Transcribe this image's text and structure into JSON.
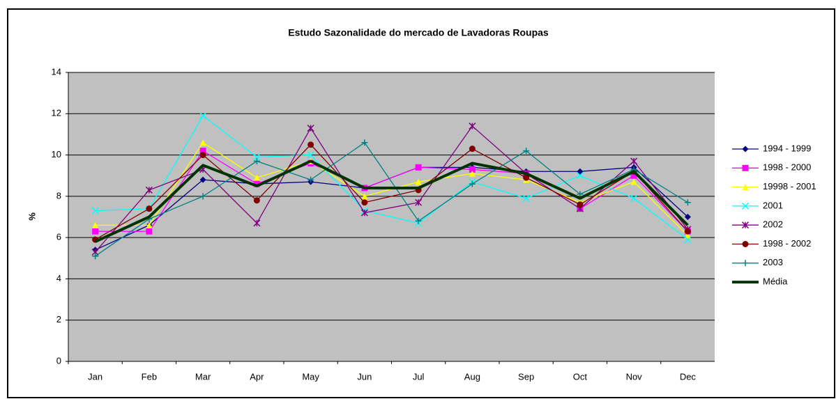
{
  "chart_data": {
    "type": "line",
    "title": "Estudo Sazonalidade do mercado de Lavadoras Roupas",
    "y_label": "%",
    "categories": [
      "Jan",
      "Feb",
      "Mar",
      "Apr",
      "May",
      "Jun",
      "Jul",
      "Aug",
      "Sep",
      "Oct",
      "Nov",
      "Dec"
    ],
    "ylim": [
      0,
      14
    ],
    "yticks": [
      0,
      2,
      4,
      6,
      8,
      10,
      12,
      14
    ],
    "grid": true,
    "legend": "right",
    "series": [
      {
        "name": "1994 - 1999",
        "color": "#000080",
        "marker": "diamond",
        "values": [
          5.4,
          6.6,
          8.8,
          8.6,
          8.7,
          8.4,
          9.4,
          9.4,
          9.2,
          9.2,
          9.4,
          7.0
        ]
      },
      {
        "name": "1998 - 2000",
        "color": "#ff00ff",
        "marker": "square",
        "values": [
          6.3,
          6.3,
          10.2,
          8.6,
          9.6,
          8.4,
          9.4,
          9.3,
          9.1,
          7.4,
          9.0,
          6.3
        ]
      },
      {
        "name": "19998 - 2001",
        "color": "#ffff00",
        "marker": "triangle",
        "values": [
          6.6,
          6.6,
          10.6,
          8.9,
          9.7,
          8.0,
          8.7,
          9.1,
          8.8,
          7.7,
          8.7,
          6.1
        ]
      },
      {
        "name": "2001",
        "color": "#00ffff",
        "marker": "x",
        "values": [
          7.3,
          7.4,
          11.9,
          9.9,
          10.0,
          7.3,
          6.7,
          8.7,
          7.9,
          9.0,
          7.9,
          5.9
        ]
      },
      {
        "name": "2002",
        "color": "#800080",
        "marker": "star",
        "values": [
          5.3,
          8.3,
          9.3,
          6.7,
          11.3,
          7.2,
          7.7,
          11.4,
          9.1,
          7.4,
          9.7,
          6.4
        ]
      },
      {
        "name": "1998 - 2002",
        "color": "#800000",
        "marker": "circle",
        "values": [
          5.9,
          7.4,
          10.0,
          7.8,
          10.5,
          7.7,
          8.3,
          10.3,
          8.9,
          7.6,
          9.2,
          6.3
        ]
      },
      {
        "name": "2003",
        "color": "#008080",
        "marker": "plus",
        "values": [
          5.1,
          6.9,
          8.0,
          9.7,
          8.8,
          10.6,
          6.8,
          8.6,
          10.2,
          8.1,
          9.3,
          7.7
        ]
      },
      {
        "name": "Média",
        "color": "#003300",
        "marker": "none",
        "width": 4,
        "values": [
          5.8,
          7.0,
          9.5,
          8.5,
          9.7,
          8.4,
          8.4,
          9.6,
          9.1,
          7.9,
          9.2,
          6.6
        ]
      }
    ]
  }
}
